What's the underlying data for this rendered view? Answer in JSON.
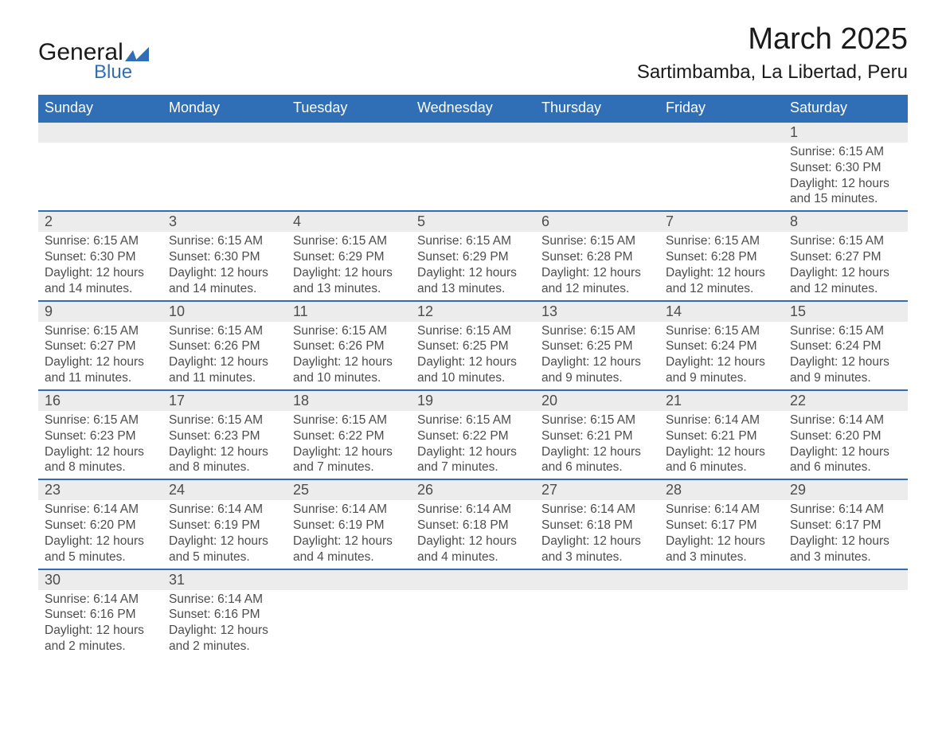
{
  "brand": {
    "general": "General",
    "blue": "Blue",
    "shape_color": "#306fb5"
  },
  "title": {
    "month": "March 2025",
    "location": "Sartimbamba, La Libertad, Peru"
  },
  "style": {
    "header_bg": "#306fb5",
    "header_fg": "#ffffff",
    "row_divider": "#306fb5",
    "daynum_bg": "#ececec",
    "text_color": "#4d4d4d",
    "body_bg": "#ffffff",
    "title_fontsize": 38,
    "location_fontsize": 24,
    "header_fontsize": 18,
    "daynum_fontsize": 18,
    "cell_fontsize": 15.5
  },
  "weekdays": [
    "Sunday",
    "Monday",
    "Tuesday",
    "Wednesday",
    "Thursday",
    "Friday",
    "Saturday"
  ],
  "weeks": [
    [
      null,
      null,
      null,
      null,
      null,
      null,
      {
        "n": "1",
        "sr": "6:15 AM",
        "ss": "6:30 PM",
        "dl": "12 hours and 15 minutes."
      }
    ],
    [
      {
        "n": "2",
        "sr": "6:15 AM",
        "ss": "6:30 PM",
        "dl": "12 hours and 14 minutes."
      },
      {
        "n": "3",
        "sr": "6:15 AM",
        "ss": "6:30 PM",
        "dl": "12 hours and 14 minutes."
      },
      {
        "n": "4",
        "sr": "6:15 AM",
        "ss": "6:29 PM",
        "dl": "12 hours and 13 minutes."
      },
      {
        "n": "5",
        "sr": "6:15 AM",
        "ss": "6:29 PM",
        "dl": "12 hours and 13 minutes."
      },
      {
        "n": "6",
        "sr": "6:15 AM",
        "ss": "6:28 PM",
        "dl": "12 hours and 12 minutes."
      },
      {
        "n": "7",
        "sr": "6:15 AM",
        "ss": "6:28 PM",
        "dl": "12 hours and 12 minutes."
      },
      {
        "n": "8",
        "sr": "6:15 AM",
        "ss": "6:27 PM",
        "dl": "12 hours and 12 minutes."
      }
    ],
    [
      {
        "n": "9",
        "sr": "6:15 AM",
        "ss": "6:27 PM",
        "dl": "12 hours and 11 minutes."
      },
      {
        "n": "10",
        "sr": "6:15 AM",
        "ss": "6:26 PM",
        "dl": "12 hours and 11 minutes."
      },
      {
        "n": "11",
        "sr": "6:15 AM",
        "ss": "6:26 PM",
        "dl": "12 hours and 10 minutes."
      },
      {
        "n": "12",
        "sr": "6:15 AM",
        "ss": "6:25 PM",
        "dl": "12 hours and 10 minutes."
      },
      {
        "n": "13",
        "sr": "6:15 AM",
        "ss": "6:25 PM",
        "dl": "12 hours and 9 minutes."
      },
      {
        "n": "14",
        "sr": "6:15 AM",
        "ss": "6:24 PM",
        "dl": "12 hours and 9 minutes."
      },
      {
        "n": "15",
        "sr": "6:15 AM",
        "ss": "6:24 PM",
        "dl": "12 hours and 9 minutes."
      }
    ],
    [
      {
        "n": "16",
        "sr": "6:15 AM",
        "ss": "6:23 PM",
        "dl": "12 hours and 8 minutes."
      },
      {
        "n": "17",
        "sr": "6:15 AM",
        "ss": "6:23 PM",
        "dl": "12 hours and 8 minutes."
      },
      {
        "n": "18",
        "sr": "6:15 AM",
        "ss": "6:22 PM",
        "dl": "12 hours and 7 minutes."
      },
      {
        "n": "19",
        "sr": "6:15 AM",
        "ss": "6:22 PM",
        "dl": "12 hours and 7 minutes."
      },
      {
        "n": "20",
        "sr": "6:15 AM",
        "ss": "6:21 PM",
        "dl": "12 hours and 6 minutes."
      },
      {
        "n": "21",
        "sr": "6:14 AM",
        "ss": "6:21 PM",
        "dl": "12 hours and 6 minutes."
      },
      {
        "n": "22",
        "sr": "6:14 AM",
        "ss": "6:20 PM",
        "dl": "12 hours and 6 minutes."
      }
    ],
    [
      {
        "n": "23",
        "sr": "6:14 AM",
        "ss": "6:20 PM",
        "dl": "12 hours and 5 minutes."
      },
      {
        "n": "24",
        "sr": "6:14 AM",
        "ss": "6:19 PM",
        "dl": "12 hours and 5 minutes."
      },
      {
        "n": "25",
        "sr": "6:14 AM",
        "ss": "6:19 PM",
        "dl": "12 hours and 4 minutes."
      },
      {
        "n": "26",
        "sr": "6:14 AM",
        "ss": "6:18 PM",
        "dl": "12 hours and 4 minutes."
      },
      {
        "n": "27",
        "sr": "6:14 AM",
        "ss": "6:18 PM",
        "dl": "12 hours and 3 minutes."
      },
      {
        "n": "28",
        "sr": "6:14 AM",
        "ss": "6:17 PM",
        "dl": "12 hours and 3 minutes."
      },
      {
        "n": "29",
        "sr": "6:14 AM",
        "ss": "6:17 PM",
        "dl": "12 hours and 3 minutes."
      }
    ],
    [
      {
        "n": "30",
        "sr": "6:14 AM",
        "ss": "6:16 PM",
        "dl": "12 hours and 2 minutes."
      },
      {
        "n": "31",
        "sr": "6:14 AM",
        "ss": "6:16 PM",
        "dl": "12 hours and 2 minutes."
      },
      null,
      null,
      null,
      null,
      null
    ]
  ],
  "labels": {
    "sunrise": "Sunrise: ",
    "sunset": "Sunset: ",
    "daylight": "Daylight: "
  }
}
